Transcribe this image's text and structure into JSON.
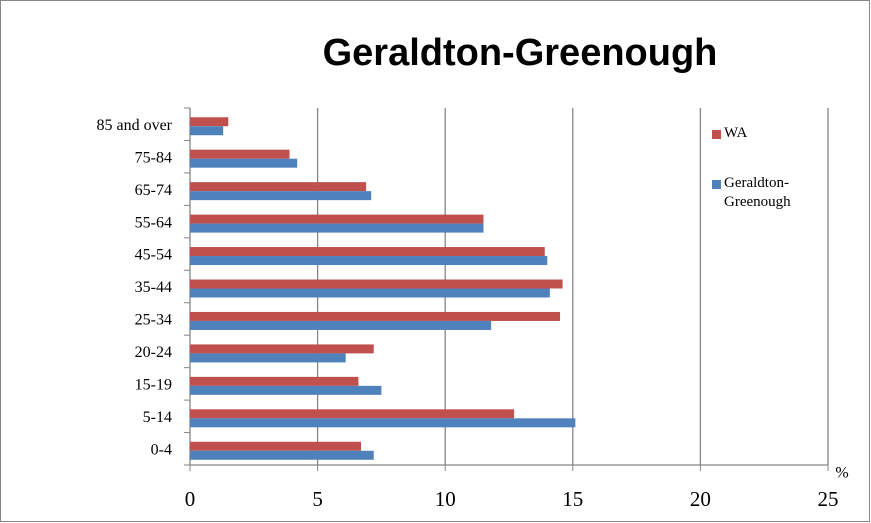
{
  "chart_data": {
    "type": "bar",
    "orientation": "horizontal",
    "title": "Geraldton-Greenough",
    "x_label": "%",
    "categories": [
      "0-4",
      "5-14",
      "15-19",
      "20-24",
      "25-34",
      "35-44",
      "45-54",
      "55-64",
      "65-74",
      "75-84",
      "85 and over"
    ],
    "series": [
      {
        "name": "WA",
        "color": "#c0504d",
        "values": [
          6.7,
          12.7,
          6.6,
          7.2,
          14.5,
          14.6,
          13.9,
          11.5,
          6.9,
          3.9,
          1.5
        ]
      },
      {
        "name": "Geraldton-Greenough",
        "color": "#4f81bd",
        "values": [
          7.2,
          15.1,
          7.5,
          6.1,
          11.8,
          14.1,
          14.0,
          11.5,
          7.1,
          4.2,
          1.3
        ]
      }
    ],
    "xlim": [
      0,
      25
    ],
    "xticks": [
      0,
      5,
      10,
      15,
      20,
      25
    ],
    "grid": true,
    "legend": "right"
  }
}
